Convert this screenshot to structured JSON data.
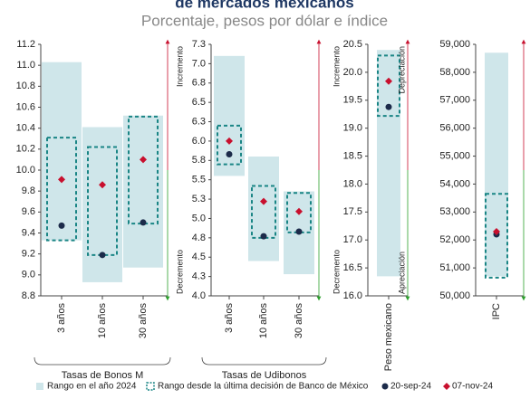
{
  "title": "de mercados mexicanos",
  "subtitle": "Porcentaje, pesos por dólar e índice",
  "legend": {
    "range_2024": {
      "name": "Rango en el año 2024",
      "color": "#cfe6ea"
    },
    "range_banxico": {
      "name": "Rango desde la última decisión de Banco de México",
      "color": "#1a8585"
    },
    "sep": {
      "name": "20-sep-24",
      "color": "#1c2b4a"
    },
    "nov": {
      "name": "07-nov-24",
      "color": "#c8102e"
    }
  },
  "chart_data": [
    {
      "type": "range",
      "group_label": "Tasas de Bonos M",
      "categories": [
        "3 años",
        "10 años",
        "30 años"
      ],
      "ylim": [
        8.8,
        11.2
      ],
      "yticks": [
        8.8,
        {
          "value": 9,
          "label": "9.0"
        },
        9.2,
        9.4,
        9.6,
        9.8,
        {
          "value": 10,
          "label": "10.0"
        },
        10.2,
        10.4,
        10.6,
        10.8,
        {
          "value": 11,
          "label": "11.0"
        },
        11.2
      ],
      "range_2024": {
        "low": [
          9.33,
          8.93,
          9.07
        ],
        "high": [
          11.03,
          10.41,
          10.52
        ]
      },
      "range_banxico": {
        "low": [
          9.33,
          9.19,
          9.49
        ],
        "high": [
          10.31,
          10.22,
          10.51
        ]
      },
      "sep": [
        9.47,
        9.19,
        9.5
      ],
      "nov": [
        9.91,
        9.86,
        10.1
      ]
    },
    {
      "type": "range",
      "group_label": "Tasas de Udibonos",
      "categories": [
        "3 años",
        "10 años",
        "30 años"
      ],
      "left_labels": {
        "top": "Incremento",
        "bottom": "Decremento"
      },
      "ylim": [
        4,
        7.25
      ],
      "yticks": [
        {
          "value": 4,
          "label": "4.0"
        },
        {
          "value": 4.25,
          "label": "4.3"
        },
        4.5,
        {
          "value": 4.75,
          "label": "4.8"
        },
        {
          "value": 5,
          "label": "5.0"
        },
        {
          "value": 5.25,
          "label": "5.3"
        },
        5.5,
        {
          "value": 5.75,
          "label": "5.8"
        },
        {
          "value": 6,
          "label": "6.0"
        },
        {
          "value": 6.25,
          "label": "6.3"
        },
        6.5,
        {
          "value": 6.75,
          "label": "6.8"
        },
        {
          "value": 7,
          "label": "7.0"
        },
        {
          "value": 7.25,
          "label": "7.3"
        }
      ],
      "range_2024": {
        "low": [
          5.55,
          4.45,
          4.28
        ],
        "high": [
          7.1,
          5.8,
          5.35
        ]
      },
      "range_banxico": {
        "low": [
          5.7,
          4.75,
          4.82
        ],
        "high": [
          6.2,
          5.42,
          5.33
        ]
      },
      "sep": [
        5.83,
        4.77,
        4.83
      ],
      "nov": [
        6.0,
        5.22,
        5.09
      ]
    },
    {
      "type": "range",
      "categories": [
        "Peso mexicano"
      ],
      "left_labels": {
        "top": "Incremento",
        "bottom": "Decremento"
      },
      "right_labels": {
        "top": "Depreciación",
        "bottom": "Apreciación"
      },
      "ylim": [
        16,
        20.5
      ],
      "yticks": [
        {
          "value": 16,
          "label": "16.0"
        },
        16.5,
        {
          "value": 17,
          "label": "17.0"
        },
        17.5,
        {
          "value": 18,
          "label": "18.0"
        },
        18.5,
        {
          "value": 19,
          "label": "19.0"
        },
        19.5,
        {
          "value": 20,
          "label": "20.0"
        },
        20.5
      ],
      "range_2024": {
        "low": [
          16.35
        ],
        "high": [
          20.4
        ]
      },
      "range_banxico": {
        "low": [
          19.22
        ],
        "high": [
          20.3
        ]
      },
      "sep": [
        19.38
      ],
      "nov": [
        19.84
      ]
    },
    {
      "type": "range",
      "categories": [
        "IPC"
      ],
      "ylim": [
        50000,
        59000
      ],
      "yticks": [
        {
          "value": 50000,
          "label": "50,000"
        },
        {
          "value": 51000,
          "label": "51,000"
        },
        {
          "value": 52000,
          "label": "52,000"
        },
        {
          "value": 53000,
          "label": "53,000"
        },
        {
          "value": 54000,
          "label": "54,000"
        },
        {
          "value": 55000,
          "label": "55,000"
        },
        {
          "value": 56000,
          "label": "56,000"
        },
        {
          "value": 57000,
          "label": "57,000"
        },
        {
          "value": 58000,
          "label": "58,000"
        },
        {
          "value": 59000,
          "label": "59,000"
        }
      ],
      "range_2024": {
        "low": [
          50700
        ],
        "high": [
          58700
        ]
      },
      "range_banxico": {
        "low": [
          50650
        ],
        "high": [
          53650
        ]
      },
      "sep": [
        52200
      ],
      "nov": [
        52300
      ]
    }
  ]
}
